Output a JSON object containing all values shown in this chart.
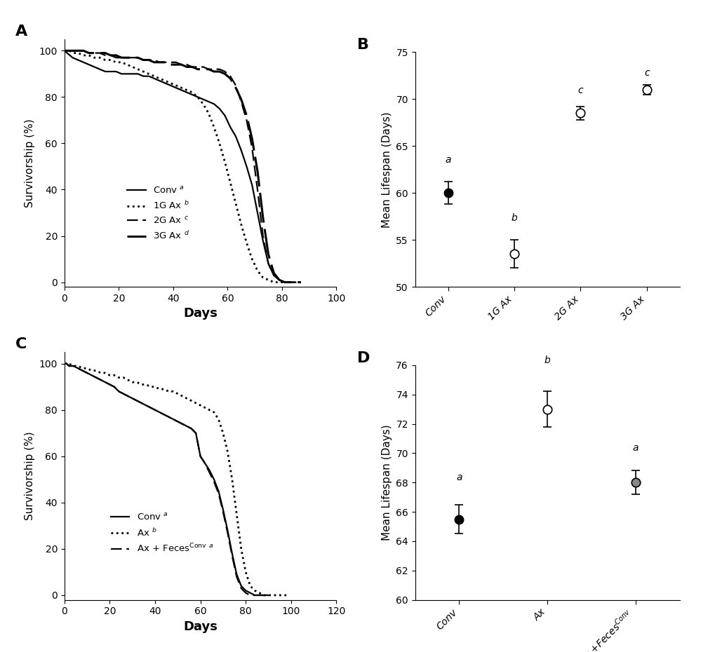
{
  "panel_A": {
    "title": "A",
    "xlabel": "Days",
    "ylabel": "Survivorship (%)",
    "xlim": [
      0,
      100
    ],
    "ylim": [
      -2,
      105
    ],
    "xticks": [
      0,
      20,
      40,
      60,
      80,
      100
    ],
    "yticks": [
      0,
      20,
      40,
      60,
      80,
      100
    ],
    "Conv": {
      "x": [
        0,
        1,
        2,
        3,
        5,
        7,
        9,
        11,
        13,
        15,
        17,
        19,
        21,
        23,
        25,
        27,
        29,
        31,
        33,
        35,
        37,
        39,
        41,
        43,
        45,
        47,
        49,
        51,
        53,
        55,
        57,
        59,
        61,
        63,
        65,
        67,
        69,
        71,
        73,
        75,
        77,
        79,
        81,
        83,
        85
      ],
      "y": [
        100,
        99,
        98,
        97,
        96,
        95,
        94,
        93,
        92,
        91,
        91,
        91,
        90,
        90,
        90,
        90,
        89,
        89,
        88,
        87,
        86,
        85,
        84,
        83,
        82,
        81,
        80,
        79,
        78,
        77,
        75,
        72,
        67,
        63,
        57,
        50,
        42,
        30,
        18,
        8,
        3,
        1,
        0,
        0,
        0
      ],
      "style": "solid",
      "lw": 1.6
    },
    "G1_Ax": {
      "x": [
        0,
        1,
        2,
        3,
        5,
        7,
        9,
        11,
        13,
        15,
        17,
        19,
        21,
        23,
        25,
        27,
        29,
        31,
        33,
        35,
        37,
        39,
        41,
        43,
        45,
        47,
        49,
        51,
        53,
        55,
        57,
        59,
        61,
        63,
        65,
        67,
        69,
        71,
        73,
        75,
        77,
        79,
        81
      ],
      "y": [
        100,
        100,
        100,
        99,
        99,
        98,
        98,
        97,
        97,
        96,
        96,
        95,
        95,
        94,
        93,
        92,
        91,
        90,
        89,
        88,
        87,
        86,
        85,
        84,
        83,
        82,
        80,
        77,
        73,
        67,
        60,
        52,
        43,
        34,
        25,
        17,
        10,
        5,
        2,
        1,
        0,
        0,
        0
      ],
      "style": "dotted",
      "lw": 2.0
    },
    "G2_Ax": {
      "x": [
        0,
        1,
        2,
        3,
        5,
        7,
        9,
        11,
        13,
        15,
        17,
        19,
        21,
        23,
        25,
        27,
        29,
        31,
        33,
        35,
        37,
        39,
        41,
        43,
        45,
        47,
        49,
        51,
        53,
        55,
        57,
        59,
        61,
        63,
        65,
        67,
        69,
        71,
        73,
        75,
        77,
        79,
        81,
        83,
        85
      ],
      "y": [
        100,
        100,
        100,
        100,
        100,
        100,
        99,
        99,
        99,
        98,
        98,
        97,
        97,
        97,
        97,
        97,
        96,
        96,
        96,
        95,
        95,
        95,
        95,
        94,
        94,
        93,
        93,
        93,
        92,
        92,
        92,
        91,
        89,
        85,
        78,
        70,
        58,
        40,
        20,
        8,
        3,
        1,
        0,
        0,
        0
      ],
      "style": "dashed",
      "lw": 1.6,
      "dashes": [
        7,
        3
      ]
    },
    "G3_Ax": {
      "x": [
        0,
        1,
        2,
        3,
        5,
        7,
        9,
        11,
        13,
        15,
        17,
        19,
        21,
        23,
        25,
        27,
        29,
        31,
        33,
        35,
        37,
        39,
        41,
        43,
        45,
        47,
        49,
        51,
        53,
        55,
        57,
        59,
        61,
        63,
        65,
        67,
        69,
        71,
        73,
        75,
        77,
        79,
        81,
        83,
        85,
        87
      ],
      "y": [
        100,
        100,
        100,
        100,
        100,
        100,
        99,
        99,
        99,
        99,
        98,
        98,
        97,
        97,
        97,
        97,
        96,
        96,
        95,
        95,
        95,
        94,
        94,
        94,
        93,
        93,
        92,
        92,
        92,
        91,
        91,
        90,
        88,
        84,
        79,
        72,
        62,
        48,
        28,
        12,
        4,
        1,
        0,
        0,
        0,
        0
      ],
      "style": "dashed",
      "lw": 2.2,
      "dashes": [
        14,
        3
      ]
    }
  },
  "panel_B": {
    "title": "B",
    "ylabel": "Mean Lifespan (Days)",
    "ylim": [
      50,
      75
    ],
    "yticks": [
      50,
      55,
      60,
      65,
      70,
      75
    ],
    "categories": [
      "Conv",
      "1G Ax",
      "2G Ax",
      "3G Ax"
    ],
    "means": [
      60.0,
      53.5,
      68.5,
      71.0
    ],
    "sems": [
      1.2,
      1.5,
      0.7,
      0.5
    ],
    "filled": [
      true,
      false,
      false,
      false
    ],
    "letters": [
      "a",
      "b",
      "c",
      "c"
    ],
    "letter_offsets": [
      1.8,
      1.8,
      1.2,
      0.8
    ]
  },
  "panel_C": {
    "title": "C",
    "xlabel": "Days",
    "ylabel": "Survivorship (%)",
    "xlim": [
      0,
      120
    ],
    "ylim": [
      -2,
      105
    ],
    "xticks": [
      0,
      20,
      40,
      60,
      80,
      100,
      120
    ],
    "yticks": [
      0,
      20,
      40,
      60,
      80,
      100
    ],
    "Conv": {
      "x": [
        0,
        1,
        2,
        4,
        6,
        8,
        10,
        12,
        14,
        16,
        18,
        20,
        22,
        24,
        26,
        28,
        30,
        32,
        34,
        36,
        38,
        40,
        42,
        44,
        46,
        48,
        50,
        52,
        54,
        56,
        58,
        60,
        62,
        64,
        66,
        68,
        70,
        72,
        74,
        76,
        78,
        80,
        82,
        84,
        86,
        88,
        90
      ],
      "y": [
        100,
        100,
        99,
        99,
        98,
        97,
        96,
        95,
        94,
        93,
        92,
        91,
        90,
        88,
        87,
        86,
        85,
        84,
        83,
        82,
        81,
        80,
        79,
        78,
        77,
        76,
        75,
        74,
        73,
        72,
        70,
        60,
        57,
        54,
        50,
        45,
        37,
        28,
        18,
        9,
        4,
        2,
        1,
        0,
        0,
        0,
        0
      ],
      "style": "solid",
      "lw": 1.6
    },
    "Ax": {
      "x": [
        0,
        1,
        2,
        4,
        6,
        8,
        10,
        12,
        14,
        16,
        18,
        20,
        22,
        24,
        26,
        28,
        30,
        32,
        34,
        36,
        38,
        40,
        42,
        44,
        46,
        48,
        50,
        52,
        54,
        56,
        58,
        60,
        62,
        64,
        66,
        68,
        70,
        72,
        74,
        76,
        78,
        80,
        82,
        84,
        86,
        88,
        90,
        92,
        94,
        96,
        98
      ],
      "y": [
        100,
        100,
        100,
        99,
        99,
        98,
        98,
        97,
        97,
        96,
        96,
        95,
        95,
        94,
        94,
        93,
        92,
        92,
        91,
        91,
        90,
        90,
        89,
        89,
        88,
        88,
        87,
        86,
        85,
        84,
        83,
        82,
        81,
        80,
        79,
        76,
        70,
        62,
        50,
        35,
        20,
        10,
        4,
        2,
        1,
        0,
        0,
        0,
        0,
        0,
        0
      ],
      "style": "dotted",
      "lw": 2.0
    },
    "Ax_FecesConv": {
      "x": [
        0,
        1,
        2,
        4,
        6,
        8,
        10,
        12,
        14,
        16,
        18,
        20,
        22,
        24,
        26,
        28,
        30,
        32,
        34,
        36,
        38,
        40,
        42,
        44,
        46,
        48,
        50,
        52,
        54,
        56,
        58,
        60,
        62,
        64,
        66,
        68,
        70,
        72,
        74,
        76,
        78,
        80,
        82,
        84,
        86,
        88,
        90
      ],
      "y": [
        100,
        100,
        99,
        99,
        98,
        97,
        96,
        95,
        94,
        93,
        92,
        91,
        90,
        88,
        87,
        86,
        85,
        84,
        83,
        82,
        81,
        80,
        79,
        78,
        77,
        76,
        75,
        74,
        73,
        72,
        70,
        60,
        57,
        53,
        49,
        44,
        36,
        27,
        17,
        8,
        3,
        1,
        0,
        0,
        0,
        0,
        0
      ],
      "style": "dashed",
      "lw": 1.6,
      "dashes": [
        7,
        3
      ]
    }
  },
  "panel_D": {
    "title": "D",
    "ylabel": "Mean Lifespan (Days)",
    "ylim": [
      60,
      76
    ],
    "yticks": [
      60,
      62,
      64,
      66,
      68,
      70,
      72,
      74,
      76
    ],
    "categories": [
      "Conv",
      "Ax",
      "Ax +Feces$^{Conv}$"
    ],
    "means": [
      65.5,
      73.0,
      68.0
    ],
    "sems": [
      1.0,
      1.2,
      0.8
    ],
    "filled": [
      true,
      false,
      false
    ],
    "dot_colors": [
      "black",
      "white",
      "gray"
    ],
    "letters": [
      "a",
      "b",
      "a"
    ],
    "letter_offsets": [
      1.5,
      1.8,
      1.2
    ]
  }
}
